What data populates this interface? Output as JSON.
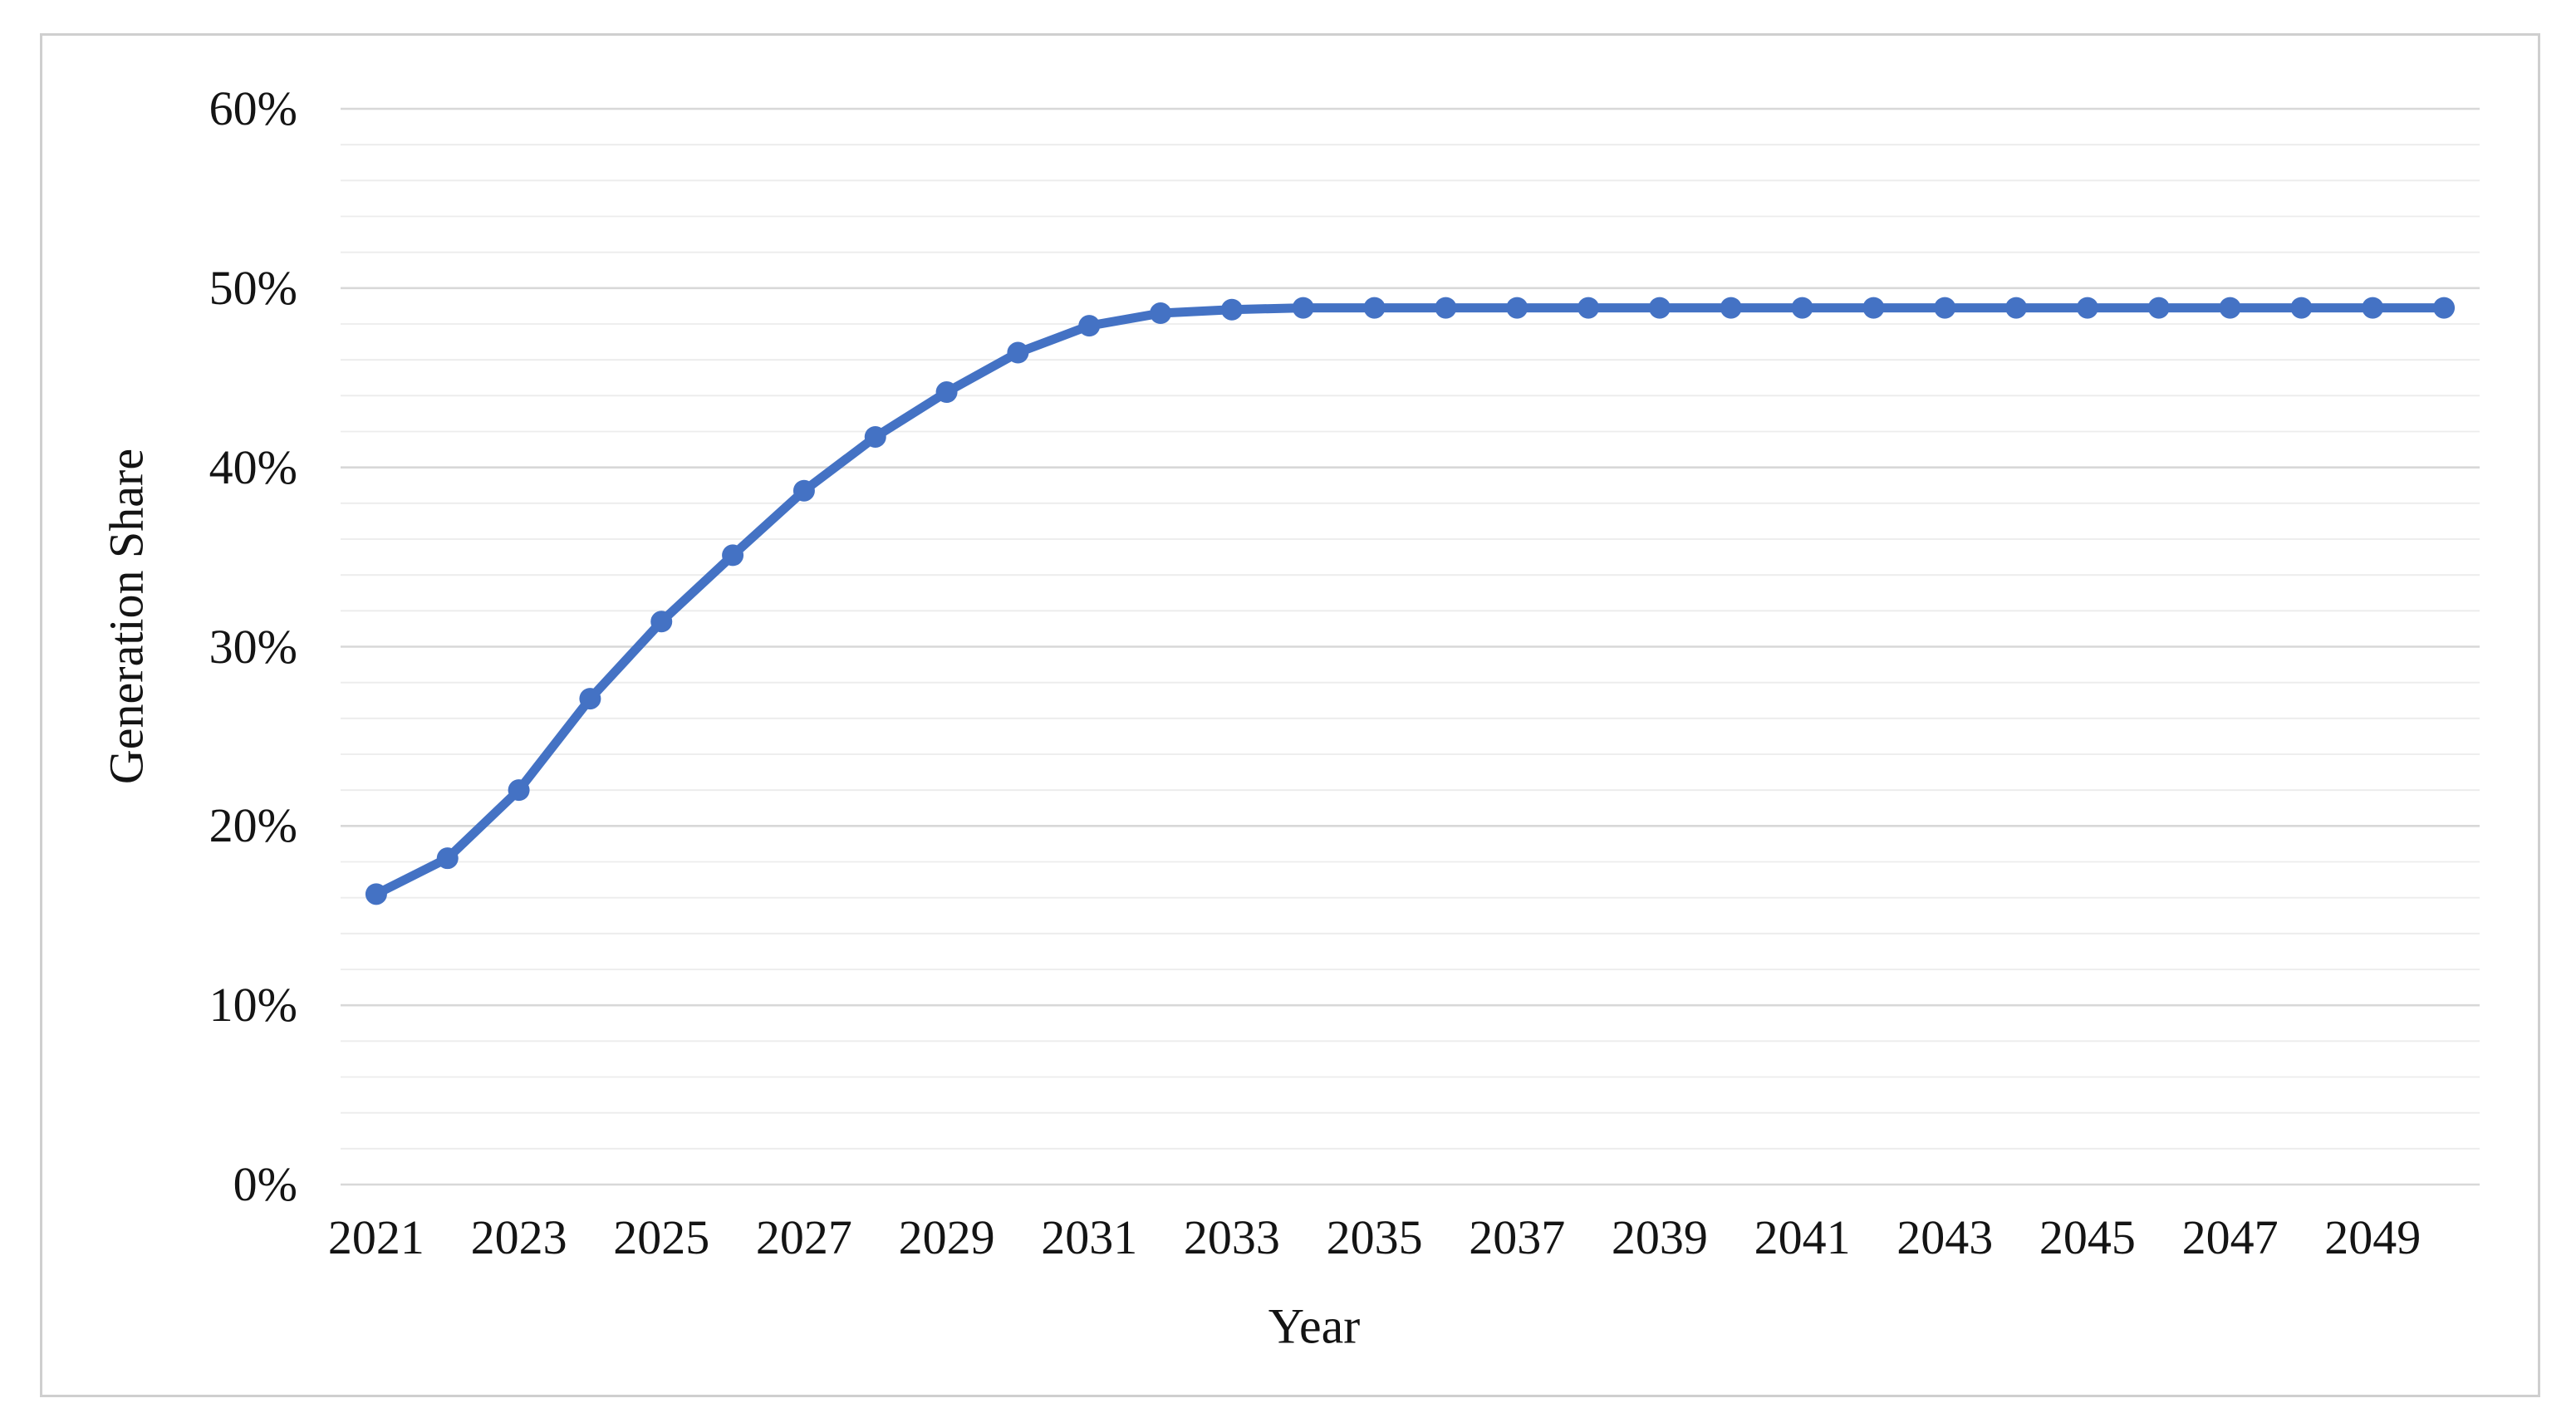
{
  "colors": {
    "line": "#4472C4",
    "marker": "#4472C4",
    "major_gridline": "#d8d8d8",
    "minor_gridline": "#ececec",
    "frame_border": "#cfcfcf",
    "text": "#141414",
    "background": "#ffffff"
  },
  "chart_data": {
    "type": "line",
    "title": "",
    "xlabel": "Year",
    "ylabel": "Generation Share",
    "x": [
      2021,
      2022,
      2023,
      2024,
      2025,
      2026,
      2027,
      2028,
      2029,
      2030,
      2031,
      2032,
      2033,
      2034,
      2035,
      2036,
      2037,
      2038,
      2039,
      2040,
      2041,
      2042,
      2043,
      2044,
      2045,
      2046,
      2047,
      2048,
      2049,
      2050
    ],
    "series": [
      {
        "name": "Generation Share",
        "color": "#4472C4",
        "marker": "circle",
        "values": [
          16.2,
          18.2,
          22.0,
          27.1,
          31.4,
          35.1,
          38.7,
          41.7,
          44.2,
          46.4,
          47.9,
          48.6,
          48.8,
          48.9,
          48.9,
          48.9,
          48.9,
          48.9,
          48.9,
          48.9,
          48.9,
          48.9,
          48.9,
          48.9,
          48.9,
          48.9,
          48.9,
          48.9,
          48.9,
          48.9
        ]
      }
    ],
    "ylim": [
      0,
      60
    ],
    "y_major_step": 10,
    "y_minor_step": 2,
    "y_tick_labels": [
      "0%",
      "10%",
      "20%",
      "30%",
      "40%",
      "50%",
      "60%"
    ],
    "x_tick_labels": [
      "2021",
      "2023",
      "2025",
      "2027",
      "2029",
      "2031",
      "2033",
      "2035",
      "2037",
      "2039",
      "2041",
      "2043",
      "2045",
      "2047",
      "2049"
    ],
    "grid": "horizontal-only",
    "legend_position": "none"
  }
}
